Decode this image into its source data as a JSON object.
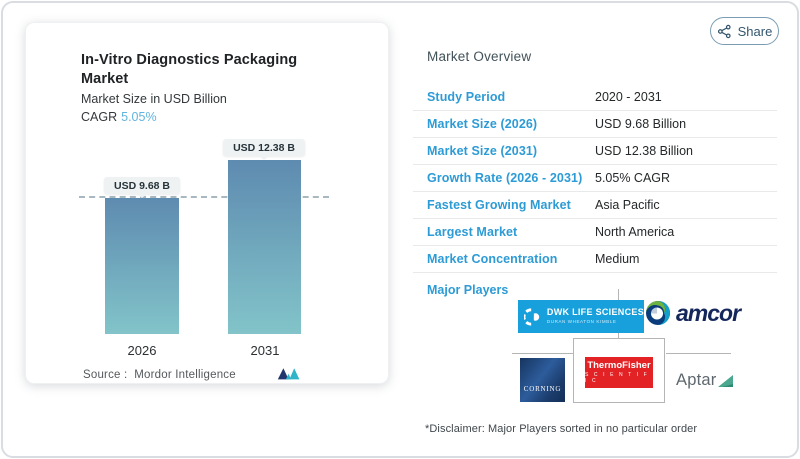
{
  "left_card": {
    "title": "In-Vitro Diagnostics Packaging Market",
    "subtitle": "Market Size in USD Billion",
    "cagr_label": "CAGR",
    "cagr_value": "5.05%",
    "source_prefix": "Source :",
    "source_name": "Mordor Intelligence"
  },
  "chart_data": {
    "type": "bar",
    "title": "In-Vitro Diagnostics Packaging Market",
    "subtitle": "Market Size in USD Billion",
    "unit": "USD Billion",
    "cagr": "5.05%",
    "categories": [
      "2026",
      "2031"
    ],
    "values": [
      9.68,
      12.38
    ],
    "bar_labels": [
      "USD 9.68 B",
      "USD 12.38 B"
    ],
    "reference_line": 9.68,
    "ylim": [
      0,
      13
    ],
    "grid": false,
    "legend": false
  },
  "overview": {
    "share_label": "Share",
    "heading": "Market Overview",
    "rows": [
      {
        "label": "Study Period",
        "value": "2020 - 2031"
      },
      {
        "label": "Market Size (2026)",
        "value": "USD 9.68 Billion"
      },
      {
        "label": "Market Size (2031)",
        "value": "USD 12.38 Billion"
      },
      {
        "label": "Growth Rate (2026 - 2031)",
        "value": "5.05% CAGR"
      },
      {
        "label": "Fastest Growing Market",
        "value": "Asia Pacific"
      },
      {
        "label": "Largest Market",
        "value": "North America"
      },
      {
        "label": "Market Concentration",
        "value": "Medium"
      }
    ],
    "major_players_label": "Major Players",
    "players": {
      "dwk": {
        "name": "DWK LIFE SCIENCES",
        "subname": "DURAN WHEATON KIMBLE"
      },
      "amcor": {
        "name": "amcor"
      },
      "corning": {
        "name": "CORNING"
      },
      "thermo": {
        "name": "ThermoFisher",
        "subname": "S C I E N T I F I C"
      },
      "aptar": {
        "name": "Aptar"
      }
    },
    "disclaimer": "*Disclaimer: Major Players sorted in no particular order"
  },
  "colors": {
    "accent_blue": "#2d9bd5",
    "cagr_blue": "#62b3e0",
    "bar_top": "#5e8bb0",
    "bar_bottom": "#82c4c9",
    "dash_grey": "#a8b8c0",
    "dwk_blue": "#18a0dc",
    "thermo_red": "#e32226",
    "amcor_navy": "#15265b",
    "aptar_green": "#4ba88f",
    "mordor_navy": "#22356d",
    "mordor_teal": "#2fb4c9"
  }
}
